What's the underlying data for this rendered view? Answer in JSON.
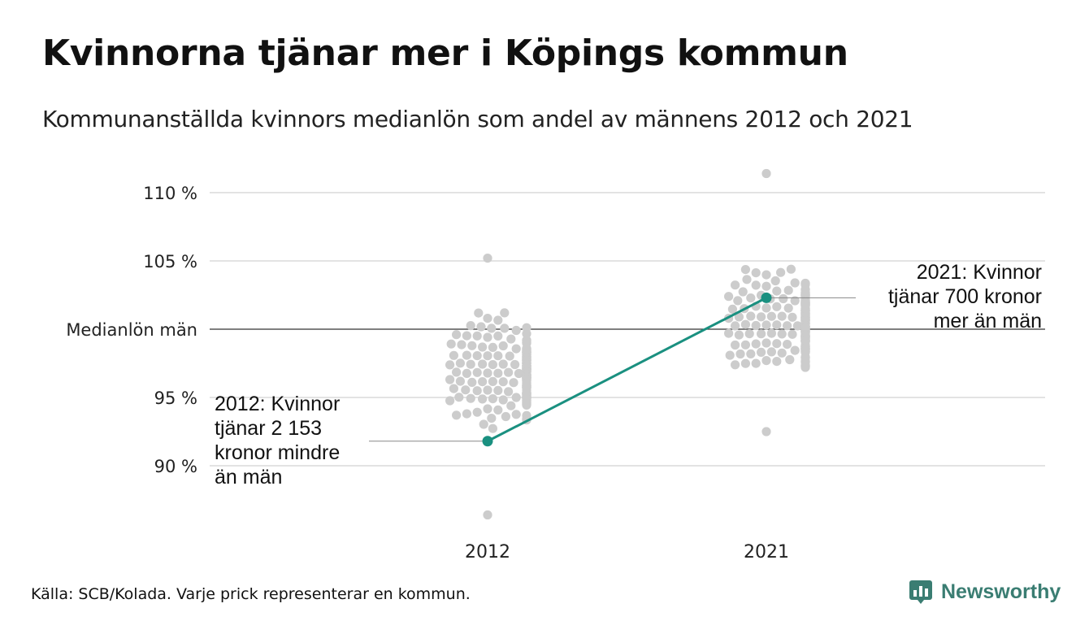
{
  "header": {
    "title": "Kvinnorna tjänar mer i Köpings kommun",
    "subtitle": "Kommunanställda kvinnors medianlön som andel av männens 2012 och 2021"
  },
  "footer": {
    "source": "Källa: SCB/Kolada. Varje prick representerar en kommun."
  },
  "brand": {
    "name": "Newsworthy",
    "icon": "newsworthy-logo-icon",
    "color": "#3a7d72"
  },
  "annotations": {
    "a2012_lines": [
      "2012: Kvinnor",
      "tjänar 2 153",
      "kronor mindre",
      "än män"
    ],
    "a2021_lines": [
      "2021: Kvinnor",
      "tjänar 700 kronor",
      "mer än män"
    ]
  },
  "chart_data": {
    "type": "scatter",
    "categories": [
      "2012",
      "2021"
    ],
    "ylim": [
      85.5,
      111.5
    ],
    "y_ticks": [
      {
        "value": 110,
        "label": "110 %"
      },
      {
        "value": 105,
        "label": "105 %"
      },
      {
        "value": 100,
        "label": "Medianlön män"
      },
      {
        "value": 95,
        "label": "95 %"
      },
      {
        "value": 90,
        "label": "90 %"
      }
    ],
    "reference_line": {
      "value": 100,
      "label": "Medianlön män"
    },
    "highlight_series": {
      "values": [
        91.8,
        102.3
      ],
      "color": "#1a9080"
    },
    "distribution": [
      {
        "category": "2012",
        "median": 96.8,
        "min": 86.4,
        "max": 105.2,
        "count": 290
      },
      {
        "category": "2021",
        "median": 100.3,
        "min": 92.5,
        "max": 111.4,
        "count": 290
      }
    ],
    "colors": {
      "dots": "#cccccc",
      "grid": "#e3e3e3",
      "reference": "#333333",
      "highlight": "#1a9080"
    }
  }
}
